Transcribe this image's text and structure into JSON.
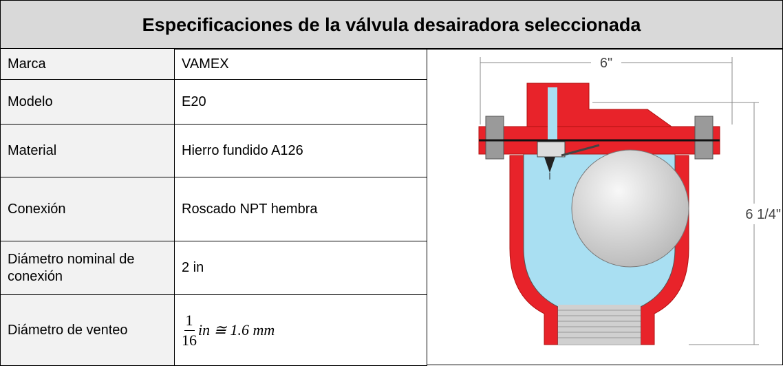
{
  "title": "Especificaciones de la válvula desairadora seleccionada",
  "table": {
    "rows": [
      [
        "Marca",
        "VAMEX"
      ],
      [
        "Modelo",
        "E20"
      ],
      [
        "Material",
        "Hierro fundido A126"
      ],
      [
        "Conexión",
        "Roscado NPT hembra"
      ],
      [
        "Diámetro nominal de conexión",
        "2 in"
      ],
      [
        "Diámetro de venteo",
        {
          "numerator": "1",
          "denominator": "16",
          "rest": "in ≅ 1.6 mm"
        }
      ]
    ]
  },
  "drawing": {
    "width_label": "6\"",
    "height_label": "6 1/4\""
  }
}
